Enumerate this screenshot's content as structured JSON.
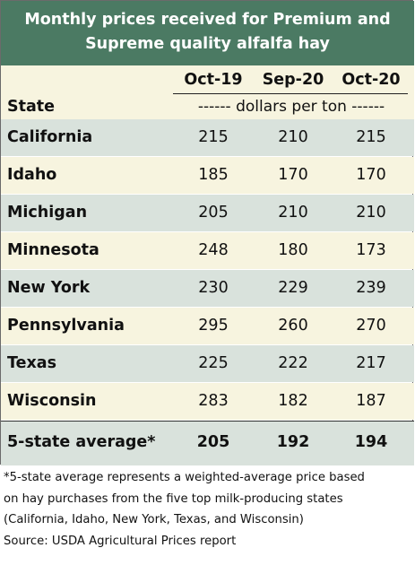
{
  "chart_data": {
    "type": "table",
    "title_lines": [
      "Monthly prices received for Premium and",
      "Supreme quality alfalfa hay"
    ],
    "columns": [
      "Oct-19",
      "Sep-20",
      "Oct-20"
    ],
    "row_header": "State",
    "units": "------ dollars per ton ------",
    "rows": [
      {
        "state": "California",
        "values": [
          215,
          210,
          215
        ]
      },
      {
        "state": "Idaho",
        "values": [
          185,
          170,
          170
        ]
      },
      {
        "state": "Michigan",
        "values": [
          205,
          210,
          210
        ]
      },
      {
        "state": "Minnesota",
        "values": [
          248,
          180,
          173
        ]
      },
      {
        "state": "New York",
        "values": [
          230,
          229,
          239
        ]
      },
      {
        "state": "Pennsylvania",
        "values": [
          295,
          260,
          270
        ]
      },
      {
        "state": "Texas",
        "values": [
          225,
          222,
          217
        ]
      },
      {
        "state": "Wisconsin",
        "values": [
          283,
          182,
          187
        ]
      }
    ],
    "average": {
      "state": "5-state average*",
      "values": [
        205,
        192,
        194
      ]
    }
  },
  "footnote_lines": [
    "*5-state average represents  a weighted-average price based",
    "on hay purchases from the five top milk-producing states",
    "(California, Idaho, New York, Texas, and Wisconsin)",
    "Source: USDA Agricultural Prices report"
  ],
  "colors": {
    "header": "#4b7a63",
    "row_green": "#d9e2dc",
    "row_cream": "#f7f4df"
  }
}
